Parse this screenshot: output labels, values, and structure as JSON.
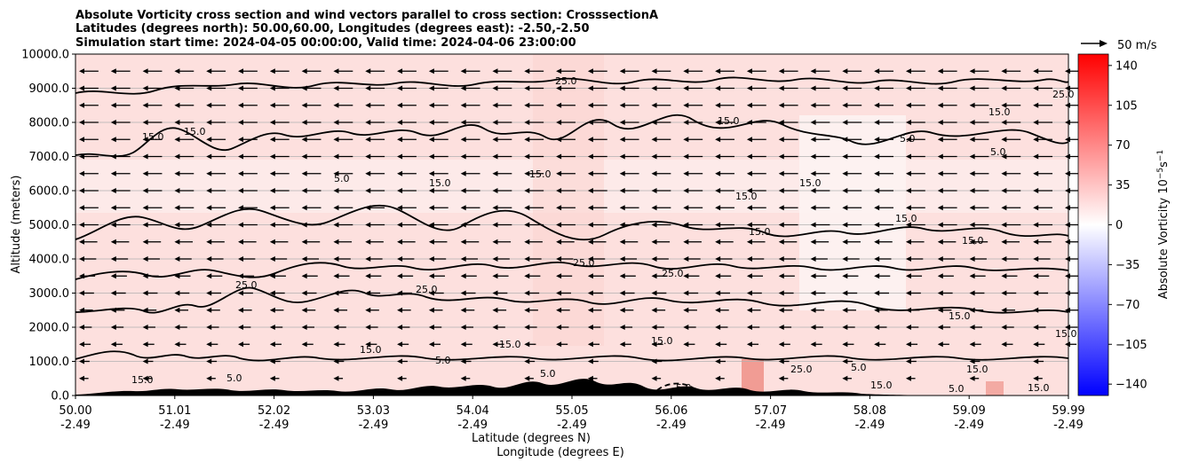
{
  "chart_data": {
    "type": "filled-contour with quiver",
    "title_lines": [
      "Absolute Vorticity cross section and wind vectors parallel to cross section: CrosssectionA",
      "Latitudes (degrees north): 50.00,60.00, Longitudes (degrees east): -2.50,-2.50",
      "Simulation start time: 2024-04-05 00:00:00, Valid time: 2024-04-06 23:00:00"
    ],
    "ylabel": "Altitude (meters)",
    "xlabel_line1": "Latitude (degrees N)",
    "xlabel_line2": "Longitude (degrees E)",
    "ylim": [
      0,
      10000
    ],
    "yticks": [
      "0.0",
      "1000.0",
      "2000.0",
      "3000.0",
      "4000.0",
      "5000.0",
      "6000.0",
      "7000.0",
      "8000.0",
      "9000.0",
      "10000.0"
    ],
    "ytick_values": [
      0,
      1000,
      2000,
      3000,
      4000,
      5000,
      6000,
      7000,
      8000,
      9000,
      10000
    ],
    "xticks": [
      {
        "lat": "50.00",
        "lon": "-2.49"
      },
      {
        "lat": "51.01",
        "lon": "-2.49"
      },
      {
        "lat": "52.02",
        "lon": "-2.49"
      },
      {
        "lat": "53.03",
        "lon": "-2.49"
      },
      {
        "lat": "54.04",
        "lon": "-2.49"
      },
      {
        "lat": "55.05",
        "lon": "-2.49"
      },
      {
        "lat": "56.06",
        "lon": "-2.49"
      },
      {
        "lat": "57.07",
        "lon": "-2.49"
      },
      {
        "lat": "58.08",
        "lon": "-2.49"
      },
      {
        "lat": "59.09",
        "lon": "-2.49"
      },
      {
        "lat": "59.99",
        "lon": "-2.49"
      }
    ],
    "xlim": [
      50.0,
      59.99
    ],
    "grid": "horizontal",
    "contour_levels": [
      -5,
      5,
      15,
      25
    ],
    "contour_label_text": [
      "-5.0",
      "5.0",
      "15.0",
      "25.0"
    ],
    "colorbar": {
      "label": "Absolute Vorticity 10",
      "label_exponent": "−5",
      "label_unit": "s",
      "label_unit_exponent": "−1",
      "ticks": [
        "140",
        "105",
        "70",
        "35",
        "0",
        "−35",
        "−70",
        "−105",
        "−140"
      ],
      "tick_values": [
        140,
        105,
        70,
        35,
        0,
        -35,
        -70,
        -105,
        -140
      ],
      "range": [
        -150,
        150
      ],
      "colormap": "bwr",
      "colors": {
        "low": "#0000ff",
        "mid": "#ffffff",
        "high": "#ff0000"
      }
    },
    "quiver": {
      "reference_label": "50 m/s",
      "reference_speed": 50,
      "direction": "southward",
      "typical_speed_upper": 14,
      "typical_speed_lower": 6,
      "altitude_levels": [
        500,
        1000,
        1500,
        2000,
        2500,
        3000,
        3500,
        4000,
        4500,
        5000,
        5500,
        6000,
        6500,
        7000,
        7500,
        8000,
        8500,
        9000,
        9500
      ]
    },
    "terrain_color": "#000000",
    "field_color": "#fde0de"
  }
}
